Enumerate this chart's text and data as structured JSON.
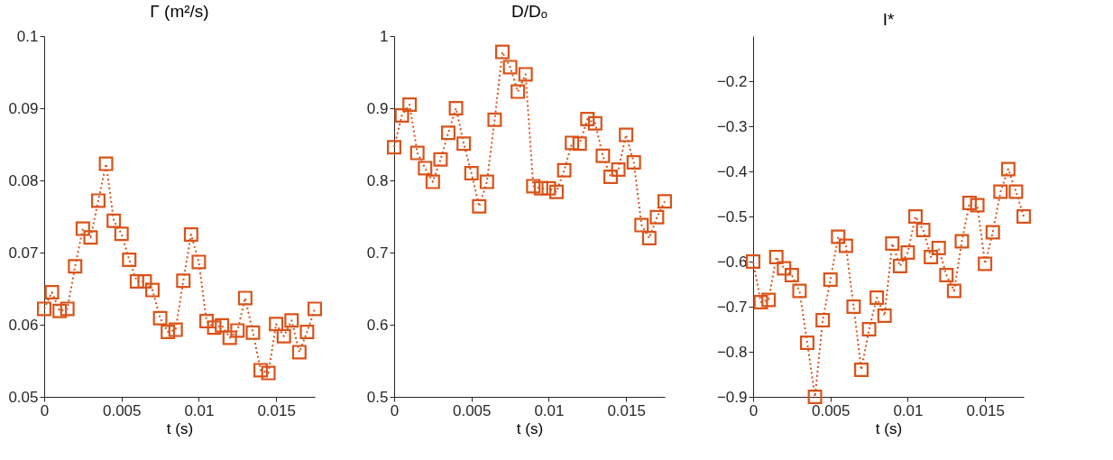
{
  "chart_data": [
    {
      "type": "line",
      "title": "Γ (m²/s)",
      "xlabel": "t (s)",
      "x": [
        0,
        0.0005,
        0.001,
        0.0015,
        0.002,
        0.0025,
        0.003,
        0.0035,
        0.004,
        0.0045,
        0.005,
        0.0055,
        0.006,
        0.0065,
        0.007,
        0.0075,
        0.008,
        0.0085,
        0.009,
        0.0095,
        0.01,
        0.0105,
        0.011,
        0.0115,
        0.012,
        0.0125,
        0.013,
        0.0135,
        0.014,
        0.0145,
        0.015,
        0.0155,
        0.016,
        0.0165,
        0.017,
        0.0175
      ],
      "series": [
        {
          "color": "#d95319",
          "values": [
            0.0622,
            0.0645,
            0.0619,
            0.0622,
            0.0681,
            0.0733,
            0.0721,
            0.0772,
            0.0823,
            0.0744,
            0.0726,
            0.069,
            0.066,
            0.066,
            0.0648,
            0.0609,
            0.059,
            0.0593,
            0.0661,
            0.0725,
            0.0687,
            0.0605,
            0.0596,
            0.0599,
            0.0582,
            0.0592,
            0.0637,
            0.0589,
            0.0537,
            0.0533,
            0.0601,
            0.0584,
            0.0606,
            0.0562,
            0.059,
            0.0622
          ]
        }
      ],
      "xlim": [
        0,
        0.0175
      ],
      "xticks": [
        0,
        0.005,
        0.01,
        0.015
      ],
      "ylim": [
        0.05,
        0.1
      ],
      "yticks": [
        0.05,
        0.06,
        0.07,
        0.08,
        0.09,
        0.1
      ],
      "grid": false,
      "marker": "square",
      "line_style": "dotted"
    },
    {
      "type": "line",
      "title": "D/Dₒ",
      "xlabel": "t (s)",
      "x": [
        0,
        0.0005,
        0.001,
        0.0015,
        0.002,
        0.0025,
        0.003,
        0.0035,
        0.004,
        0.0045,
        0.005,
        0.0055,
        0.006,
        0.0065,
        0.007,
        0.0075,
        0.008,
        0.0085,
        0.009,
        0.0095,
        0.01,
        0.0105,
        0.011,
        0.0115,
        0.012,
        0.0125,
        0.013,
        0.0135,
        0.014,
        0.0145,
        0.015,
        0.0155,
        0.016,
        0.0165,
        0.017,
        0.0175
      ],
      "series": [
        {
          "color": "#d95319",
          "values": [
            0.846,
            0.89,
            0.905,
            0.838,
            0.817,
            0.798,
            0.829,
            0.866,
            0.9,
            0.851,
            0.81,
            0.764,
            0.798,
            0.884,
            0.978,
            0.957,
            0.923,
            0.947,
            0.792,
            0.789,
            0.789,
            0.784,
            0.814,
            0.852,
            0.851,
            0.885,
            0.879,
            0.834,
            0.805,
            0.815,
            0.863,
            0.825,
            0.738,
            0.72,
            0.749,
            0.771
          ]
        }
      ],
      "xlim": [
        0,
        0.0175
      ],
      "xticks": [
        0,
        0.005,
        0.01,
        0.015
      ],
      "ylim": [
        0.5,
        1
      ],
      "yticks": [
        0.5,
        0.6,
        0.7,
        0.8,
        0.9,
        1
      ],
      "grid": false,
      "marker": "square",
      "line_style": "dotted"
    },
    {
      "type": "line",
      "title": "I*",
      "xlabel": "t (s)",
      "x": [
        0,
        0.0005,
        0.001,
        0.0015,
        0.002,
        0.0025,
        0.003,
        0.0035,
        0.004,
        0.0045,
        0.005,
        0.0055,
        0.006,
        0.0065,
        0.007,
        0.0075,
        0.008,
        0.0085,
        0.009,
        0.0095,
        0.01,
        0.0105,
        0.011,
        0.0115,
        0.012,
        0.0125,
        0.013,
        0.0135,
        0.014,
        0.0145,
        0.015,
        0.0155,
        0.016,
        0.0165,
        0.017,
        0.0175
      ],
      "series": [
        {
          "color": "#d95319",
          "values": [
            -0.6,
            -0.69,
            -0.685,
            -0.59,
            -0.615,
            -0.63,
            -0.665,
            -0.78,
            -0.9,
            -0.73,
            -0.64,
            -0.545,
            -0.565,
            -0.7,
            -0.84,
            -0.75,
            -0.68,
            -0.72,
            -0.56,
            -0.61,
            -0.58,
            -0.5,
            -0.53,
            -0.59,
            -0.57,
            -0.63,
            -0.665,
            -0.555,
            -0.47,
            -0.475,
            -0.605,
            -0.535,
            -0.445,
            -0.395,
            -0.445,
            -0.5
          ]
        }
      ],
      "xlim": [
        0,
        0.0175
      ],
      "xticks": [
        0,
        0.005,
        0.01,
        0.015
      ],
      "ylim": [
        -0.9,
        -0.1
      ],
      "yticks": [
        -0.9,
        -0.8,
        -0.7,
        -0.6,
        -0.5,
        -0.4,
        -0.3,
        -0.2
      ],
      "grid": false,
      "marker": "square",
      "line_style": "dotted"
    }
  ]
}
